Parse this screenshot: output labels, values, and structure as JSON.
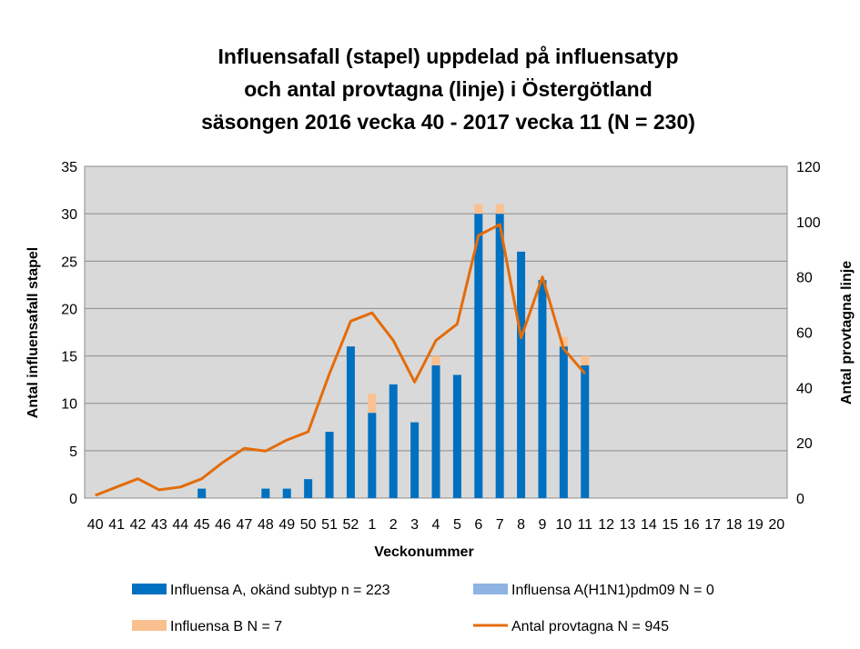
{
  "chart_data": {
    "type": "bar",
    "title": [
      "Influensafall (stapel) uppdelad på influensatyp",
      "och antal provtagna (linje)  i Östergötland",
      "säsongen 2016 vecka 40 - 2017 vecka 11  (N = 230)"
    ],
    "xlabel": "Veckonummer",
    "ylabel_left": "Antal influensafall stapel",
    "ylabel_right": "Antal provtagna linje",
    "ylim_left": [
      0,
      35
    ],
    "yticks_left": [
      0,
      5,
      10,
      15,
      20,
      25,
      30,
      35
    ],
    "ylim_right": [
      0,
      120
    ],
    "yticks_right": [
      0,
      20,
      40,
      60,
      80,
      100,
      120
    ],
    "categories": [
      "40",
      "41",
      "42",
      "43",
      "44",
      "45",
      "46",
      "47",
      "48",
      "49",
      "50",
      "51",
      "52",
      "1",
      "2",
      "3",
      "4",
      "5",
      "6",
      "7",
      "8",
      "9",
      "10",
      "11",
      "12",
      "13",
      "14",
      "15",
      "16",
      "17",
      "18",
      "19",
      "20"
    ],
    "series": [
      {
        "name": "Influensa A, okänd subtyp n = 223",
        "kind": "bar",
        "color": "#0070c0",
        "values": [
          0,
          0,
          0,
          0,
          0,
          1,
          0,
          0,
          1,
          1,
          2,
          7,
          16,
          9,
          12,
          8,
          14,
          13,
          30,
          30,
          26,
          23,
          16,
          14,
          0,
          0,
          0,
          0,
          0,
          0,
          0,
          0,
          0
        ]
      },
      {
        "name": "Influensa A(H1N1)pdm09 N = 0",
        "kind": "bar",
        "color": "#8db4e2",
        "values": [
          0,
          0,
          0,
          0,
          0,
          0,
          0,
          0,
          0,
          0,
          0,
          0,
          0,
          0,
          0,
          0,
          0,
          0,
          0,
          0,
          0,
          0,
          0,
          0,
          0,
          0,
          0,
          0,
          0,
          0,
          0,
          0,
          0
        ]
      },
      {
        "name": "Influensa B  N = 7",
        "kind": "bar",
        "color": "#fac090",
        "values": [
          0,
          0,
          0,
          0,
          0,
          0,
          0,
          0,
          0,
          0,
          0,
          0,
          0,
          2,
          0,
          0,
          1,
          0,
          1,
          1,
          0,
          0,
          1,
          1,
          0,
          0,
          0,
          0,
          0,
          0,
          0,
          0,
          0
        ]
      },
      {
        "name": "Antal provtagna  N = 945",
        "kind": "line",
        "axis": "right",
        "color": "#e46c0a",
        "values": [
          1,
          4,
          7,
          3,
          4,
          7,
          13,
          18,
          17,
          21,
          24,
          45,
          64,
          67,
          57,
          42,
          57,
          63,
          95,
          99,
          58,
          80,
          54,
          45,
          null,
          null,
          null,
          null,
          null,
          null,
          null,
          null,
          null
        ]
      }
    ],
    "grid": true,
    "plot_background": "#d9d9d9",
    "legend_position": "bottom"
  }
}
